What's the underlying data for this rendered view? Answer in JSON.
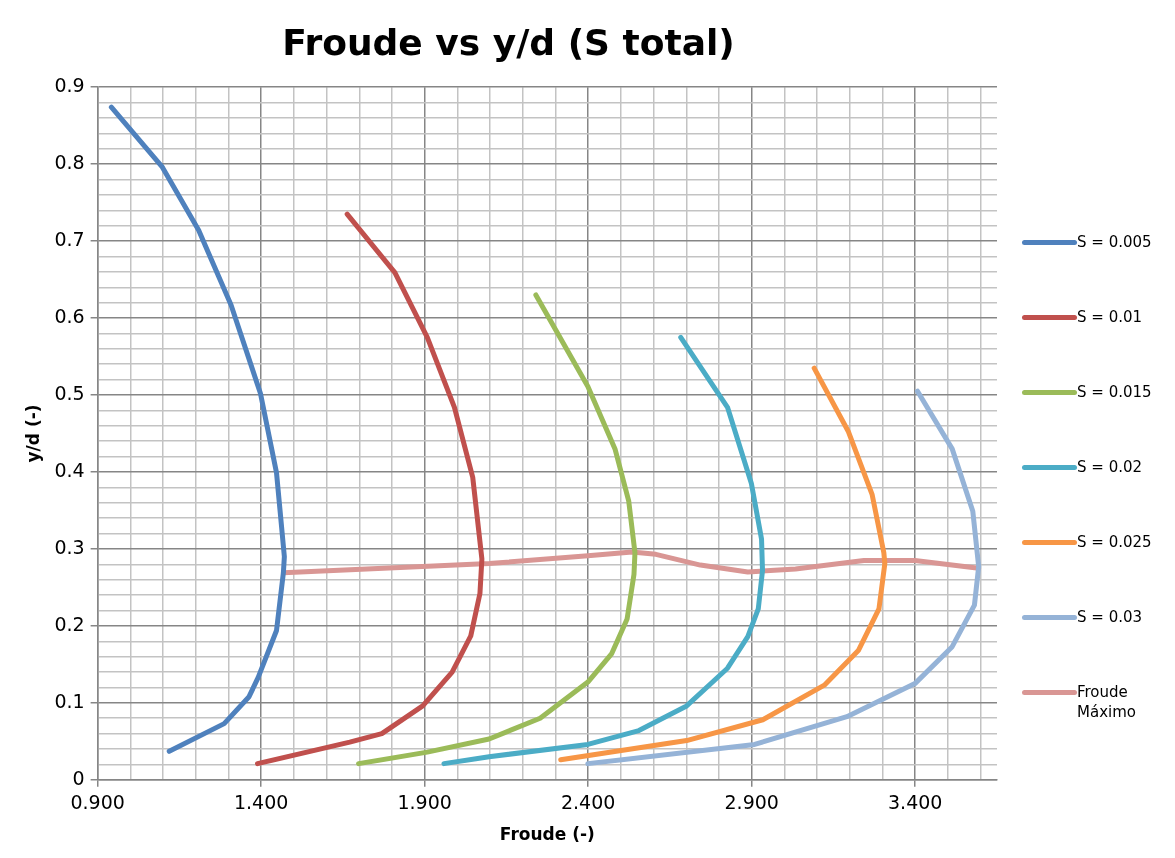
{
  "chart_data": {
    "type": "line",
    "title": "Froude vs y/d (S total)",
    "xlabel": "Froude (-)",
    "ylabel": "y/d (-)",
    "xlim": [
      0.9,
      3.65
    ],
    "ylim": [
      0,
      0.9
    ],
    "xticks": [
      {
        "value": 0.9,
        "label": "0.900"
      },
      {
        "value": 1.0,
        "label": null
      },
      {
        "value": 1.1,
        "label": null
      },
      {
        "value": 1.2,
        "label": null
      },
      {
        "value": 1.3,
        "label": null
      },
      {
        "value": 1.4,
        "label": "1.400"
      },
      {
        "value": 1.5,
        "label": null
      },
      {
        "value": 1.6,
        "label": null
      },
      {
        "value": 1.7,
        "label": null
      },
      {
        "value": 1.8,
        "label": null
      },
      {
        "value": 1.9,
        "label": "1.900"
      },
      {
        "value": 2.0,
        "label": null
      },
      {
        "value": 2.1,
        "label": null
      },
      {
        "value": 2.2,
        "label": null
      },
      {
        "value": 2.3,
        "label": null
      },
      {
        "value": 2.4,
        "label": "2.400"
      },
      {
        "value": 2.5,
        "label": null
      },
      {
        "value": 2.6,
        "label": null
      },
      {
        "value": 2.7,
        "label": null
      },
      {
        "value": 2.8,
        "label": null
      },
      {
        "value": 2.9,
        "label": "2.900"
      },
      {
        "value": 3.0,
        "label": null
      },
      {
        "value": 3.1,
        "label": null
      },
      {
        "value": 3.2,
        "label": null
      },
      {
        "value": 3.3,
        "label": null
      },
      {
        "value": 3.4,
        "label": "3.400"
      },
      {
        "value": 3.5,
        "label": null
      },
      {
        "value": 3.6,
        "label": null
      }
    ],
    "yticks": [
      0,
      {
        "value": 0.02,
        "label": null
      },
      {
        "value": 0.04,
        "label": null
      },
      {
        "value": 0.06,
        "label": null
      },
      {
        "value": 0.08,
        "label": null
      },
      0.1,
      {
        "value": 0.12,
        "label": null
      },
      {
        "value": 0.14,
        "label": null
      },
      {
        "value": 0.16,
        "label": null
      },
      {
        "value": 0.18,
        "label": null
      },
      0.2,
      {
        "value": 0.22,
        "label": null
      },
      {
        "value": 0.24,
        "label": null
      },
      {
        "value": 0.26,
        "label": null
      },
      {
        "value": 0.28,
        "label": null
      },
      0.3,
      {
        "value": 0.32,
        "label": null
      },
      {
        "value": 0.34,
        "label": null
      },
      {
        "value": 0.36,
        "label": null
      },
      {
        "value": 0.38,
        "label": null
      },
      0.4,
      {
        "value": 0.42,
        "label": null
      },
      {
        "value": 0.44,
        "label": null
      },
      {
        "value": 0.46,
        "label": null
      },
      {
        "value": 0.48,
        "label": null
      },
      0.5,
      {
        "value": 0.52,
        "label": null
      },
      {
        "value": 0.54,
        "label": null
      },
      {
        "value": 0.56,
        "label": null
      },
      {
        "value": 0.58,
        "label": null
      },
      0.6,
      {
        "value": 0.62,
        "label": null
      },
      {
        "value": 0.64,
        "label": null
      },
      {
        "value": 0.66,
        "label": null
      },
      {
        "value": 0.68,
        "label": null
      },
      0.7,
      {
        "value": 0.72,
        "label": null
      },
      {
        "value": 0.74,
        "label": null
      },
      {
        "value": 0.76,
        "label": null
      },
      {
        "value": 0.78,
        "label": null
      },
      0.8,
      {
        "value": 0.82,
        "label": null
      },
      {
        "value": 0.84,
        "label": null
      },
      {
        "value": 0.86,
        "label": null
      },
      {
        "value": 0.88,
        "label": null
      },
      0.9
    ],
    "grid": true,
    "legend": "right",
    "marker": "none",
    "line_style": "solid",
    "series": [
      {
        "name": "S = 0.005",
        "color": "#4f81bd",
        "x": [
          0.942,
          1.098,
          1.209,
          1.308,
          1.398,
          1.447,
          1.471,
          1.468,
          1.447,
          1.391,
          1.363,
          1.287,
          1.119
        ],
        "values": [
          0.874,
          0.796,
          0.714,
          0.617,
          0.502,
          0.399,
          0.29,
          0.269,
          0.194,
          0.133,
          0.108,
          0.073,
          0.037
        ]
      },
      {
        "name": "S = 0.01",
        "color": "#c0504d",
        "x": [
          1.663,
          1.809,
          1.908,
          1.991,
          2.047,
          2.075,
          2.069,
          2.041,
          1.984,
          1.894,
          1.769,
          1.671,
          1.389
        ],
        "values": [
          0.735,
          0.659,
          0.575,
          0.484,
          0.393,
          0.287,
          0.242,
          0.187,
          0.14,
          0.096,
          0.06,
          0.049,
          0.021
        ]
      },
      {
        "name": "S = 0.015",
        "color": "#9bbb59",
        "x": [
          2.24,
          2.399,
          2.482,
          2.524,
          2.543,
          2.54,
          2.519,
          2.472,
          2.399,
          2.253,
          2.097,
          1.908,
          1.698
        ],
        "values": [
          0.63,
          0.511,
          0.43,
          0.362,
          0.295,
          0.267,
          0.209,
          0.164,
          0.127,
          0.08,
          0.053,
          0.036,
          0.021
        ]
      },
      {
        "name": "S = 0.02",
        "color": "#4bacc6",
        "x": [
          2.683,
          2.826,
          2.899,
          2.93,
          2.933,
          2.92,
          2.888,
          2.826,
          2.701,
          2.555,
          2.399,
          2.097,
          1.959
        ],
        "values": [
          0.575,
          0.484,
          0.385,
          0.313,
          0.272,
          0.222,
          0.186,
          0.145,
          0.096,
          0.064,
          0.046,
          0.03,
          0.021
        ]
      },
      {
        "name": "S = 0.025",
        "color": "#f79646",
        "x": [
          3.091,
          3.195,
          3.268,
          3.304,
          3.307,
          3.289,
          3.226,
          3.122,
          2.934,
          2.701,
          2.316
        ],
        "values": [
          0.535,
          0.453,
          0.371,
          0.295,
          0.281,
          0.222,
          0.168,
          0.123,
          0.078,
          0.051,
          0.026
        ]
      },
      {
        "name": "S = 0.03",
        "color": "#95b3d7",
        "x": [
          3.407,
          3.513,
          3.576,
          3.594,
          3.581,
          3.513,
          3.399,
          3.191,
          2.909,
          2.399
        ],
        "values": [
          0.505,
          0.43,
          0.349,
          0.277,
          0.227,
          0.173,
          0.125,
          0.082,
          0.046,
          0.021
        ]
      },
      {
        "name": "Froude Máximo",
        "color": "#d99694",
        "x": [
          1.468,
          2.097,
          2.399,
          2.534,
          2.607,
          2.743,
          2.888,
          3.034,
          3.243,
          3.399,
          3.594
        ],
        "values": [
          0.269,
          0.281,
          0.291,
          0.296,
          0.293,
          0.279,
          0.27,
          0.274,
          0.285,
          0.285,
          0.275
        ]
      }
    ]
  }
}
